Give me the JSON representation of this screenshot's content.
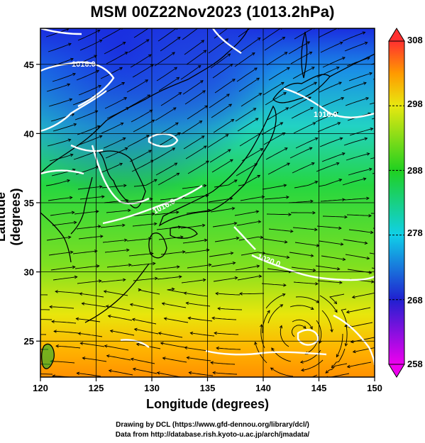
{
  "title": "MSM 00Z22Nov2023 (1013.2hPa)",
  "xlabel": "Longitude (degrees)",
  "ylabel": "Latitude  (degrees)",
  "credits": [
    "Drawing by DCL (https://www.gfd-dennou.org/library/dcl/)",
    "Data from http://database.rish.kyoto-u.ac.jp/arch/jmadata/"
  ],
  "map": {
    "lon_range": [
      120,
      150
    ],
    "lat_range": [
      22.4,
      47.6
    ],
    "lon_ticks": [
      120,
      125,
      130,
      135,
      140,
      145,
      150
    ],
    "lon_tick_labels": [
      "120",
      "125",
      "130",
      "135",
      "140",
      "145",
      "150"
    ],
    "lat_ticks": [
      25,
      30,
      35,
      40,
      45
    ],
    "lat_tick_labels": [
      "25",
      "30",
      "35",
      "40",
      "45"
    ],
    "grid": true
  },
  "colorbar": {
    "min": 258,
    "max": 308,
    "tick_values": [
      268,
      278,
      288,
      298
    ],
    "tick_labels": [
      "308",
      "298",
      "288",
      "278",
      "268",
      "258"
    ]
  },
  "isobar_labels": [
    "1016.0",
    "1016.0",
    "1016.0",
    "1020.0"
  ],
  "colors": {
    "cold": "#1f2bd8",
    "cool": "#19c0e0",
    "mild": "#21d23a",
    "warm": "#e6e60a",
    "hot": "#ff9a00",
    "land_line": "#000000",
    "isobar": "#ffffff"
  }
}
